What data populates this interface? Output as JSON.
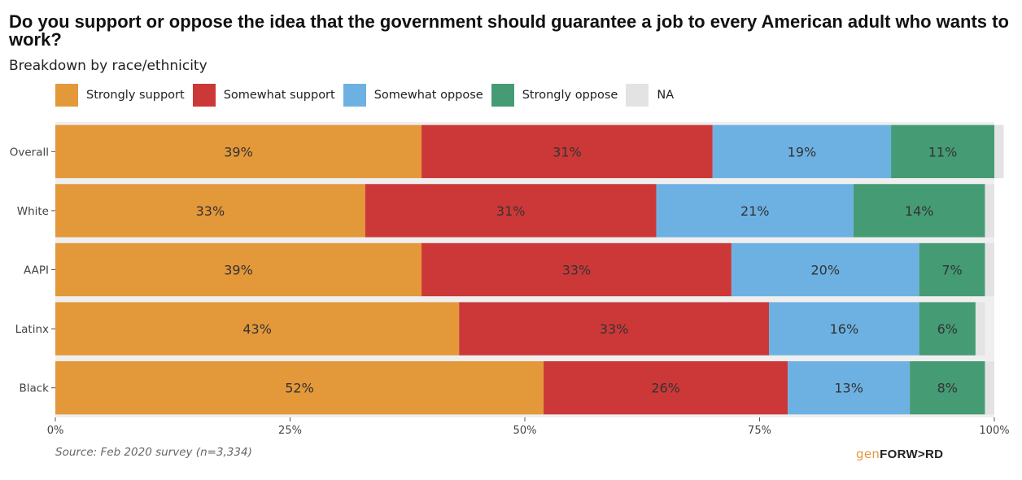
{
  "chart_data": {
    "type": "bar",
    "orientation": "horizontal",
    "stacked": true,
    "title": "Do you support or oppose the idea that the government should guarantee a job to every American adult who wants to work?",
    "subtitle": "Breakdown by race/ethnicity",
    "categories": [
      "Overall",
      "White",
      "AAPI",
      "Latinx",
      "Black"
    ],
    "series": [
      {
        "name": "Strongly support",
        "color": "#e3983a",
        "values": [
          39,
          33,
          39,
          43,
          52
        ],
        "labels": [
          "39%",
          "33%",
          "39%",
          "43%",
          "52%"
        ]
      },
      {
        "name": "Somewhat support",
        "color": "#cc3838",
        "values": [
          31,
          31,
          33,
          33,
          26
        ],
        "labels": [
          "31%",
          "31%",
          "33%",
          "33%",
          "26%"
        ]
      },
      {
        "name": "Somewhat oppose",
        "color": "#6db1e3",
        "values": [
          19,
          21,
          20,
          16,
          13
        ],
        "labels": [
          "19%",
          "21%",
          "20%",
          "16%",
          "13%"
        ]
      },
      {
        "name": "Strongly oppose",
        "color": "#459b74",
        "values": [
          11,
          14,
          7,
          6,
          8
        ],
        "labels": [
          "11%",
          "14%",
          "7%",
          "6%",
          "8%"
        ]
      },
      {
        "name": "NA",
        "color": "#e3e3e3",
        "values": [
          1,
          1,
          1,
          1,
          1
        ],
        "labels": [
          "",
          "",
          "",
          "",
          ""
        ]
      }
    ],
    "xlim": [
      0,
      100
    ],
    "x_ticks": [
      0,
      25,
      50,
      75,
      100
    ],
    "x_tick_labels": [
      "0%",
      "25%",
      "50%",
      "75%",
      "100%"
    ],
    "legend_position": "top-left",
    "grid": false
  },
  "source": "Source: Feb 2020 survey (n=3,334)",
  "logo": {
    "part1": "gen",
    "part2": "FORW>RD"
  }
}
